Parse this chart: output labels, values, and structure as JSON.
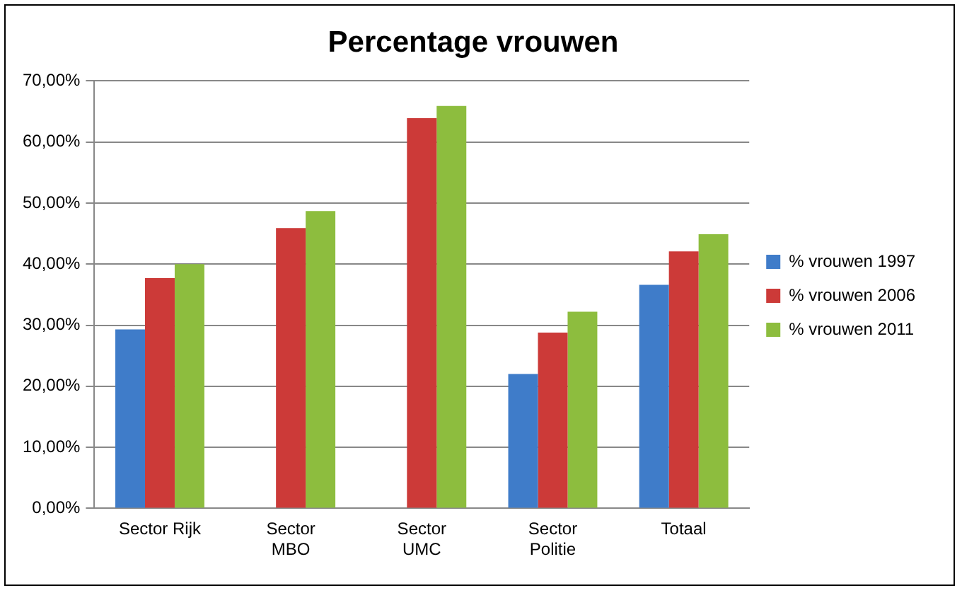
{
  "chart_data": {
    "type": "bar",
    "title": "Percentage vrouwen",
    "categories": [
      "Sector Rijk",
      "Sector MBO",
      "Sector UMC",
      "Sector Politie",
      "Totaal"
    ],
    "series": [
      {
        "name": "% vrouwen 1997",
        "color": "#3f7cc9",
        "values": [
          29.3,
          null,
          null,
          22.0,
          36.6
        ]
      },
      {
        "name": "% vrouwen 2006",
        "color": "#cc3a38",
        "values": [
          37.7,
          45.9,
          63.9,
          28.8,
          42.1
        ]
      },
      {
        "name": "% vrouwen 2011",
        "color": "#8dbd3e",
        "values": [
          40.0,
          48.7,
          65.9,
          32.2,
          44.9
        ]
      }
    ],
    "ylim": [
      0,
      70
    ],
    "yticks": [
      {
        "value": 0,
        "label": "0,00%"
      },
      {
        "value": 10,
        "label": "10,00%"
      },
      {
        "value": 20,
        "label": "20,00%"
      },
      {
        "value": 30,
        "label": "30,00%"
      },
      {
        "value": 40,
        "label": "40,00%"
      },
      {
        "value": 50,
        "label": "50,00%"
      },
      {
        "value": 60,
        "label": "60,00%"
      },
      {
        "value": 70,
        "label": "70,00%"
      }
    ],
    "grid": "y",
    "legend": "right"
  }
}
